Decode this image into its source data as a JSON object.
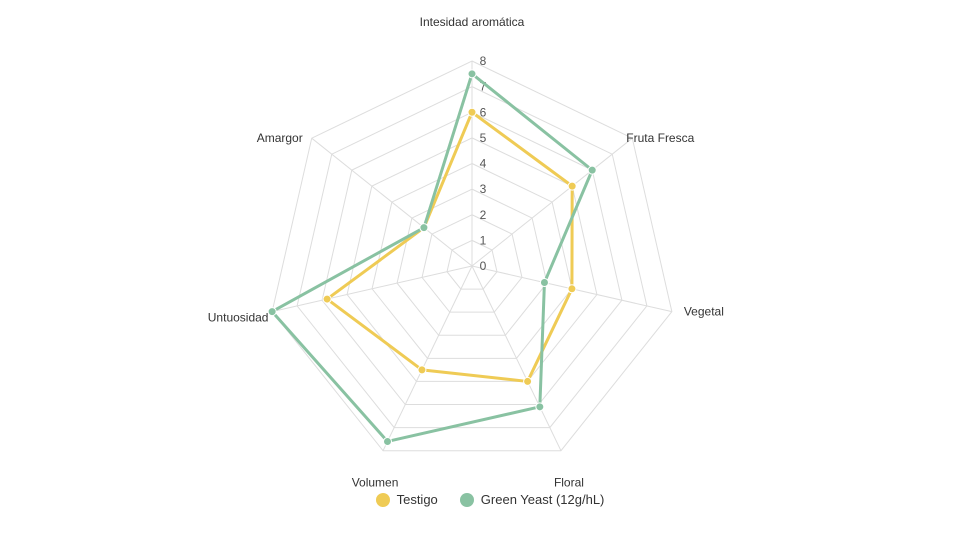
{
  "chart_data": {
    "type": "radar",
    "title": "",
    "axes": [
      "Intesidad aromática",
      "Fruta Fresca",
      "Vegetal",
      "Floral",
      "Volumen",
      "Untuosidad",
      "Amargor"
    ],
    "rlim": [
      0,
      8
    ],
    "ticks": [
      0,
      1,
      2,
      3,
      4,
      5,
      6,
      7,
      8
    ],
    "grid": true,
    "legend_position": "bottom",
    "series": [
      {
        "name": "Testigo",
        "color": "#EFCB55",
        "values": [
          6,
          5,
          4,
          5,
          4.5,
          5.8,
          2.4
        ]
      },
      {
        "name": "Green Yeast (12g/hL)",
        "color": "#89C2A2",
        "values": [
          7.5,
          6,
          2.9,
          6.1,
          7.6,
          8,
          2.4
        ]
      }
    ]
  }
}
